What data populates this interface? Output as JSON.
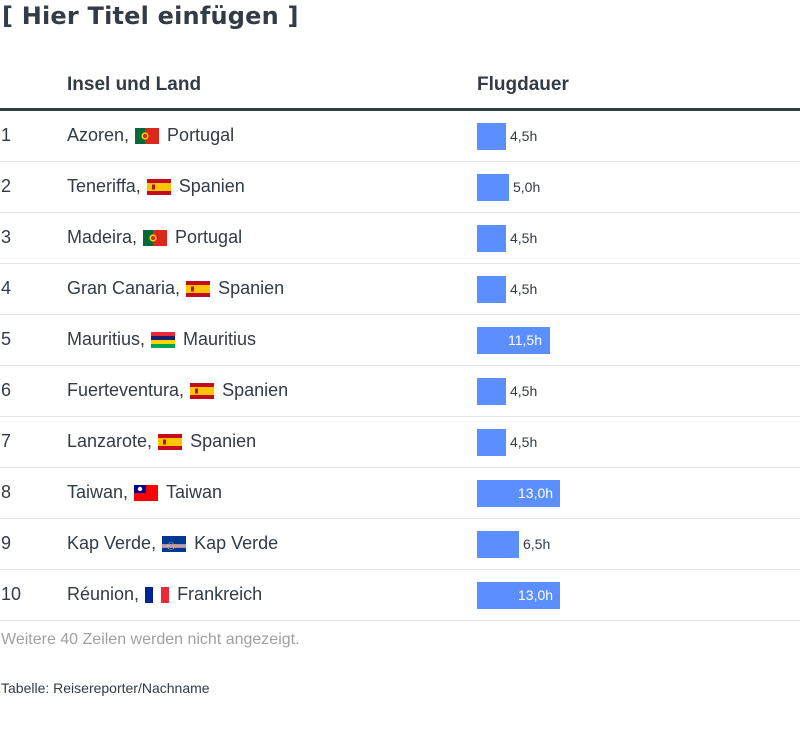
{
  "title": "[ Hier Titel einfügen ]",
  "columns": {
    "name": "Insel und Land",
    "duration": "Flugdauer"
  },
  "chart_data": {
    "type": "table",
    "title": "[ Hier Titel einfügen ]",
    "columns": [
      "Insel und Land",
      "Flugdauer"
    ],
    "max_value": 13,
    "rows": [
      {
        "rank": "1",
        "island": "Azoren,",
        "country": "Portugal",
        "flag": "portugal-flag",
        "value": 4.5,
        "label": "4,5h"
      },
      {
        "rank": "2",
        "island": "Teneriffa,",
        "country": "Spanien",
        "flag": "spain-flag",
        "value": 5.0,
        "label": "5,0h"
      },
      {
        "rank": "3",
        "island": "Madeira,",
        "country": "Portugal",
        "flag": "portugal-flag",
        "value": 4.5,
        "label": "4,5h"
      },
      {
        "rank": "4",
        "island": "Gran Canaria,",
        "country": "Spanien",
        "flag": "spain-flag",
        "value": 4.5,
        "label": "4,5h"
      },
      {
        "rank": "5",
        "island": "Mauritius,",
        "country": "Mauritius",
        "flag": "mauritius-flag",
        "value": 11.5,
        "label": "11,5h"
      },
      {
        "rank": "6",
        "island": "Fuerteventura,",
        "country": "Spanien",
        "flag": "spain-flag",
        "value": 4.5,
        "label": "4,5h"
      },
      {
        "rank": "7",
        "island": "Lanzarote,",
        "country": "Spanien",
        "flag": "spain-flag",
        "value": 4.5,
        "label": "4,5h"
      },
      {
        "rank": "8",
        "island": "Taiwan,",
        "country": "Taiwan",
        "flag": "taiwan-flag",
        "value": 13.0,
        "label": "13,0h"
      },
      {
        "rank": "9",
        "island": "Kap Verde,",
        "country": "Kap Verde",
        "flag": "cape-verde-flag",
        "value": 6.5,
        "label": "6,5h"
      },
      {
        "rank": "10",
        "island": "Réunion,",
        "country": "Frankreich",
        "flag": "france-flag",
        "value": 13.0,
        "label": "13,0h"
      }
    ]
  },
  "more_rows_note": "Weitere 40 Zeilen werden nicht angezeigt.",
  "source": "Tabelle: Reisereporter/Nachname",
  "colors": {
    "bar": "#5b8ffd",
    "text": "#333b44",
    "muted": "#a0a0a0"
  }
}
